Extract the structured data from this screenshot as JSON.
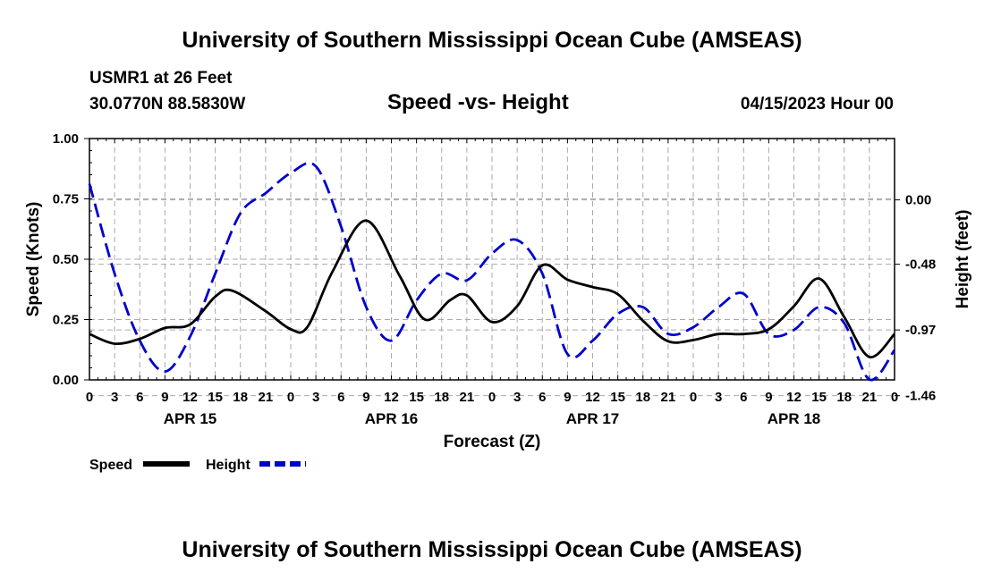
{
  "page": {
    "title": "University of Southern Mississippi Ocean Cube (AMSEAS)",
    "footer_title": "University of Southern Mississippi Ocean Cube (AMSEAS)",
    "station": "USMR1 at 26 Feet",
    "coords": "30.0770N  88.5830W",
    "subtitle": "Speed -vs- Height",
    "datetime": "04/15/2023 Hour 00"
  },
  "chart_data": {
    "type": "line",
    "title": "Speed -vs- Height",
    "xlabel": "Forecast (Z)",
    "ylabel": "Speed (Knots)",
    "y2label": "Height (feet)",
    "ylim": [
      0,
      1
    ],
    "y2lim": [
      -1.3425,
      0.4575
    ],
    "x_range_hours": [
      0,
      96
    ],
    "x_tick_labels": [
      "0",
      "3",
      "6",
      "9",
      "12",
      "15",
      "18",
      "21",
      "0",
      "3",
      "6",
      "9",
      "12",
      "15",
      "18",
      "21",
      "0",
      "3",
      "6",
      "9",
      "12",
      "15",
      "18",
      "21",
      "0",
      "3",
      "6",
      "9",
      "12",
      "15",
      "18",
      "21",
      "0"
    ],
    "date_labels": [
      {
        "label": "APR 15",
        "hour": 12
      },
      {
        "label": "APR 16",
        "hour": 36
      },
      {
        "label": "APR 17",
        "hour": 60
      },
      {
        "label": "APR 18",
        "hour": 84
      }
    ],
    "y_ticks": [
      "0.00",
      "0.25",
      "0.50",
      "0.75",
      "1.00"
    ],
    "y2_ticks": [
      "-1.46",
      "-0.97",
      "-0.48",
      "0.00"
    ],
    "legend": [
      {
        "name": "Speed",
        "color": "#000000",
        "dash": "solid"
      },
      {
        "name": "Height",
        "color": "#0000cc",
        "dash": "dashed"
      }
    ],
    "series": [
      {
        "name": "Speed",
        "axis": "left",
        "points": [
          [
            0,
            0.19
          ],
          [
            3,
            0.15
          ],
          [
            6,
            0.17
          ],
          [
            9,
            0.215
          ],
          [
            12,
            0.23
          ],
          [
            15,
            0.345
          ],
          [
            17,
            0.37
          ],
          [
            21,
            0.285
          ],
          [
            24,
            0.21
          ],
          [
            26,
            0.22
          ],
          [
            29,
            0.45
          ],
          [
            33,
            0.66
          ],
          [
            37,
            0.43
          ],
          [
            40,
            0.25
          ],
          [
            43,
            0.33
          ],
          [
            45,
            0.35
          ],
          [
            48,
            0.24
          ],
          [
            51,
            0.305
          ],
          [
            54,
            0.475
          ],
          [
            57,
            0.415
          ],
          [
            60,
            0.385
          ],
          [
            63,
            0.355
          ],
          [
            66,
            0.245
          ],
          [
            69,
            0.16
          ],
          [
            72,
            0.165
          ],
          [
            75,
            0.19
          ],
          [
            78,
            0.19
          ],
          [
            81,
            0.21
          ],
          [
            84,
            0.305
          ],
          [
            87,
            0.42
          ],
          [
            90,
            0.26
          ],
          [
            93,
            0.095
          ],
          [
            96,
            0.19
          ]
        ]
      },
      {
        "name": "Height",
        "axis": "right",
        "points": [
          [
            0,
            0.12
          ],
          [
            3,
            -0.55
          ],
          [
            6,
            -1.05
          ],
          [
            9,
            -1.28
          ],
          [
            12,
            -1.02
          ],
          [
            15,
            -0.55
          ],
          [
            18,
            -0.1
          ],
          [
            21,
            0.05
          ],
          [
            24,
            0.2
          ],
          [
            27,
            0.25
          ],
          [
            30,
            -0.2
          ],
          [
            33,
            -0.8
          ],
          [
            36,
            -1.05
          ],
          [
            39,
            -0.75
          ],
          [
            42,
            -0.55
          ],
          [
            45,
            -0.6
          ],
          [
            48,
            -0.4
          ],
          [
            51,
            -0.3
          ],
          [
            54,
            -0.55
          ],
          [
            57,
            -1.15
          ],
          [
            60,
            -1.05
          ],
          [
            63,
            -0.85
          ],
          [
            66,
            -0.8
          ],
          [
            69,
            -1.0
          ],
          [
            72,
            -0.95
          ],
          [
            75,
            -0.8
          ],
          [
            78,
            -0.7
          ],
          [
            81,
            -1.0
          ],
          [
            84,
            -0.97
          ],
          [
            87,
            -0.8
          ],
          [
            90,
            -0.92
          ],
          [
            93,
            -1.34
          ],
          [
            96,
            -1.12
          ]
        ]
      }
    ]
  }
}
